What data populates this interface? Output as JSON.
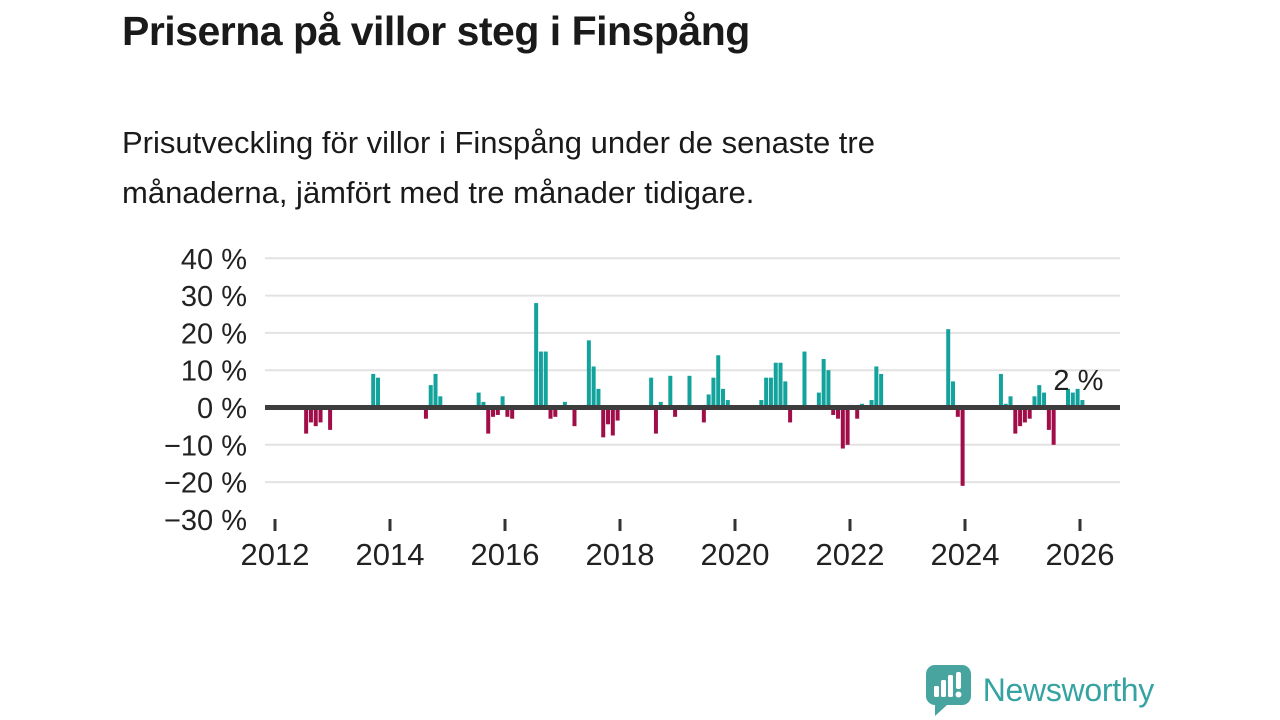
{
  "header": {
    "title": "Priserna på villor steg i Finspång",
    "subtitle_lines": [
      "Prisutveckling för villor i Finspång under de senaste tre",
      "månaderna, jämfört med tre månader tidigare."
    ]
  },
  "chart_data": {
    "type": "bar",
    "title": "Prisutveckling för villor i Finspång, rullande tre månader",
    "xlabel": "",
    "ylabel": "",
    "unit": "%",
    "ylim": [
      -30,
      40
    ],
    "grid": true,
    "legend_position": "none",
    "y_axis": {
      "tick_values": [
        40,
        30,
        20,
        10,
        0,
        -10,
        -20,
        -30
      ],
      "tick_labels": [
        "40 %",
        "30 %",
        "20 %",
        "10 %",
        "0 %",
        "−10 %",
        "−20 %",
        "−30 %"
      ]
    },
    "x_axis": {
      "tick_years": [
        2012,
        2014,
        2016,
        2018,
        2020,
        2022,
        2024,
        2026
      ],
      "tick_labels": [
        "2012",
        "2014",
        "2016",
        "2018",
        "2020",
        "2022",
        "2024",
        "2026"
      ]
    },
    "annotation": {
      "text": "2 %"
    },
    "colors": {
      "positive": "#13a39c",
      "negative": "#a00d49",
      "zero_line": "#3d3d3d",
      "gridline": "#e2e2e2",
      "tick": "#333333"
    },
    "series": [
      {
        "month": "2012-07",
        "value": -7
      },
      {
        "month": "2012-08",
        "value": -4
      },
      {
        "month": "2012-09",
        "value": -5
      },
      {
        "month": "2012-10",
        "value": -4
      },
      {
        "month": "2012-12",
        "value": -6
      },
      {
        "month": "2013-09",
        "value": 9
      },
      {
        "month": "2013-10",
        "value": 8
      },
      {
        "month": "2014-08",
        "value": -3
      },
      {
        "month": "2014-09",
        "value": 6
      },
      {
        "month": "2014-10",
        "value": 9
      },
      {
        "month": "2014-11",
        "value": 3
      },
      {
        "month": "2015-07",
        "value": 4
      },
      {
        "month": "2015-08",
        "value": 1.5
      },
      {
        "month": "2015-09",
        "value": -7
      },
      {
        "month": "2015-10",
        "value": -2.5
      },
      {
        "month": "2015-11",
        "value": -2
      },
      {
        "month": "2015-12",
        "value": 3
      },
      {
        "month": "2016-01",
        "value": -2.5
      },
      {
        "month": "2016-02",
        "value": -3
      },
      {
        "month": "2016-07",
        "value": 28
      },
      {
        "month": "2016-08",
        "value": 15
      },
      {
        "month": "2016-09",
        "value": 15
      },
      {
        "month": "2016-10",
        "value": -3
      },
      {
        "month": "2016-11",
        "value": -2.5
      },
      {
        "month": "2017-01",
        "value": 1.5
      },
      {
        "month": "2017-03",
        "value": -5
      },
      {
        "month": "2017-06",
        "value": 18
      },
      {
        "month": "2017-07",
        "value": 11
      },
      {
        "month": "2017-08",
        "value": 5
      },
      {
        "month": "2017-09",
        "value": -8
      },
      {
        "month": "2017-10",
        "value": -4.5
      },
      {
        "month": "2017-11",
        "value": -7.5
      },
      {
        "month": "2017-12",
        "value": -3.5
      },
      {
        "month": "2018-07",
        "value": 8
      },
      {
        "month": "2018-08",
        "value": -7
      },
      {
        "month": "2018-09",
        "value": 1.5
      },
      {
        "month": "2018-11",
        "value": 8.5
      },
      {
        "month": "2018-12",
        "value": -2.5
      },
      {
        "month": "2019-03",
        "value": 8.5
      },
      {
        "month": "2019-06",
        "value": -4
      },
      {
        "month": "2019-07",
        "value": 3.5
      },
      {
        "month": "2019-08",
        "value": 8
      },
      {
        "month": "2019-09",
        "value": 14
      },
      {
        "month": "2019-10",
        "value": 5
      },
      {
        "month": "2019-11",
        "value": 2
      },
      {
        "month": "2020-06",
        "value": 2
      },
      {
        "month": "2020-07",
        "value": 8
      },
      {
        "month": "2020-08",
        "value": 8
      },
      {
        "month": "2020-09",
        "value": 12
      },
      {
        "month": "2020-10",
        "value": 12
      },
      {
        "month": "2020-11",
        "value": 7
      },
      {
        "month": "2020-12",
        "value": -4
      },
      {
        "month": "2021-03",
        "value": 15
      },
      {
        "month": "2021-06",
        "value": 4
      },
      {
        "month": "2021-07",
        "value": 13
      },
      {
        "month": "2021-08",
        "value": 10
      },
      {
        "month": "2021-09",
        "value": -2
      },
      {
        "month": "2021-10",
        "value": -3
      },
      {
        "month": "2021-11",
        "value": -11
      },
      {
        "month": "2021-12",
        "value": -10
      },
      {
        "month": "2022-02",
        "value": -3
      },
      {
        "month": "2022-03",
        "value": 1
      },
      {
        "month": "2022-05",
        "value": 2
      },
      {
        "month": "2022-06",
        "value": 11
      },
      {
        "month": "2022-07",
        "value": 9
      },
      {
        "month": "2023-09",
        "value": 21
      },
      {
        "month": "2023-10",
        "value": 7
      },
      {
        "month": "2023-11",
        "value": -2.5
      },
      {
        "month": "2023-12",
        "value": -21
      },
      {
        "month": "2024-08",
        "value": 9
      },
      {
        "month": "2024-09",
        "value": 1
      },
      {
        "month": "2024-10",
        "value": 3
      },
      {
        "month": "2024-11",
        "value": -7
      },
      {
        "month": "2024-12",
        "value": -5
      },
      {
        "month": "2025-01",
        "value": -4
      },
      {
        "month": "2025-02",
        "value": -3
      },
      {
        "month": "2025-03",
        "value": 3
      },
      {
        "month": "2025-04",
        "value": 6
      },
      {
        "month": "2025-05",
        "value": 4
      },
      {
        "month": "2025-06",
        "value": -6
      },
      {
        "month": "2025-07",
        "value": -10
      },
      {
        "month": "2025-10",
        "value": 5
      },
      {
        "month": "2025-11",
        "value": 4
      },
      {
        "month": "2025-12",
        "value": 5
      },
      {
        "month": "2026-01",
        "value": 2
      }
    ]
  },
  "branding": {
    "logo_text": "Newsworthy",
    "logo_color": "#36a3a3",
    "logo_bubble_color": "#47a49f"
  }
}
